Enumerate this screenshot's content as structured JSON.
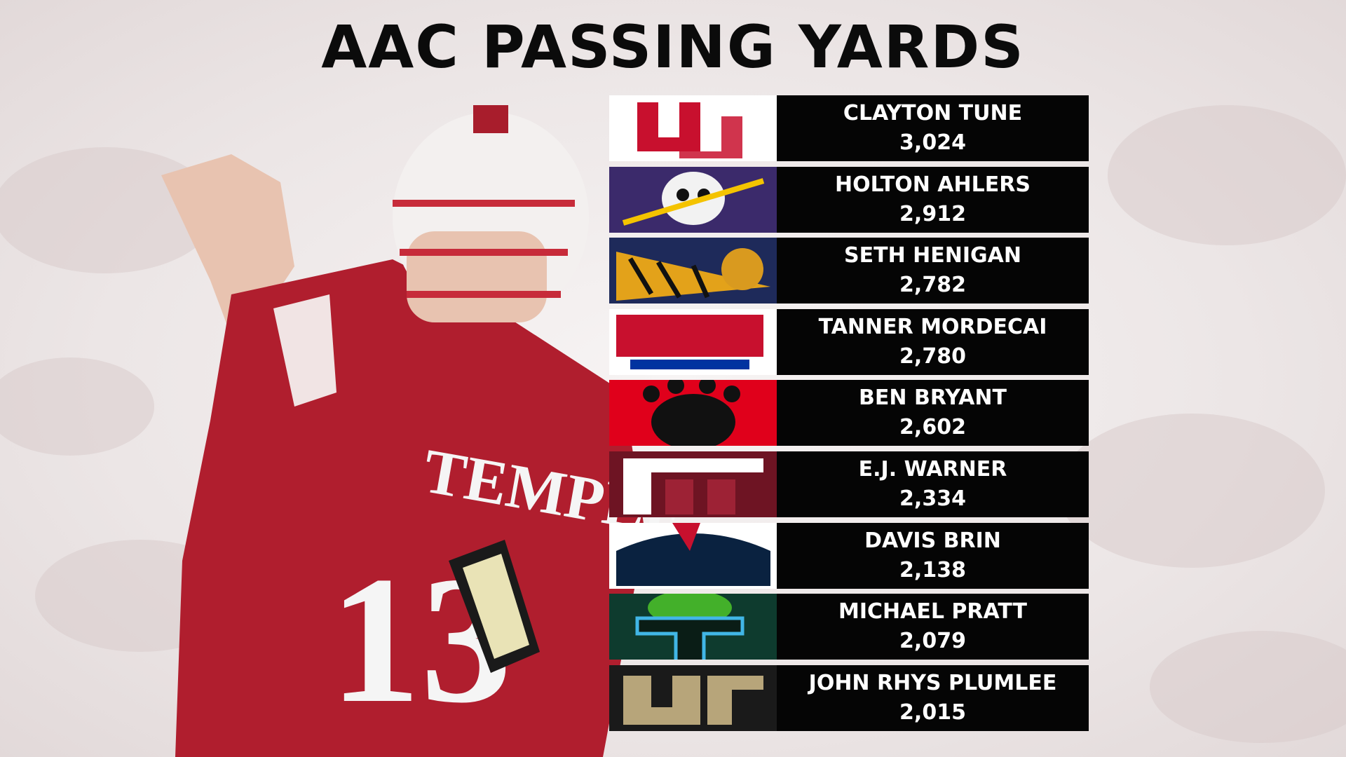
{
  "header": {
    "title": "AAC PASSING YARDS"
  },
  "rows": [
    {
      "name": "CLAYTON TUNE",
      "yards": "3,024"
    },
    {
      "name": "HOLTON AHLERS",
      "yards": "2,912"
    },
    {
      "name": "SETH HENIGAN",
      "yards": "2,782"
    },
    {
      "name": "TANNER MORDECAI",
      "yards": "2,780"
    },
    {
      "name": "BEN BRYANT",
      "yards": "2,602"
    },
    {
      "name": "E.J. WARNER",
      "yards": "2,334"
    },
    {
      "name": "DAVIS BRIN",
      "yards": "2,138"
    },
    {
      "name": "MICHAEL PRATT",
      "yards": "2,079"
    },
    {
      "name": "JOHN RHYS PLUMLEE",
      "yards": "2,015"
    }
  ]
}
